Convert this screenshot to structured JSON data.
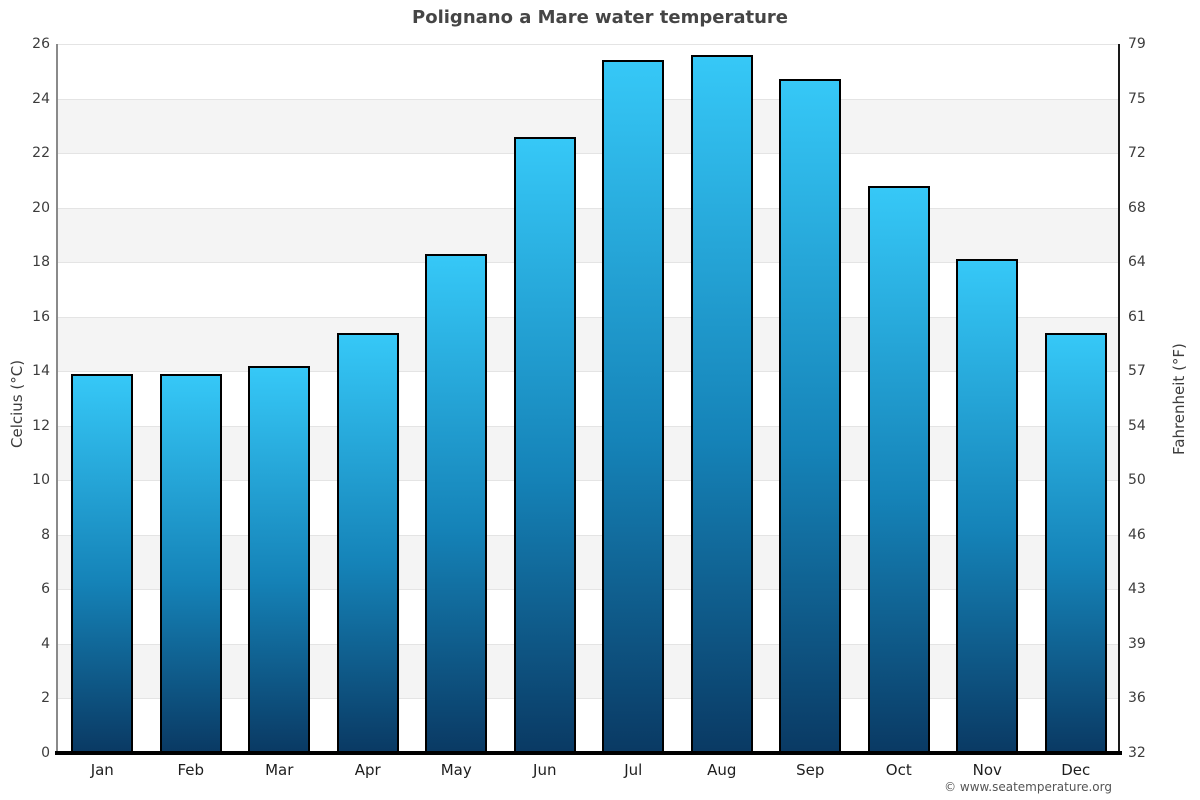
{
  "page": {
    "footer": "© www.seatemperature.org"
  },
  "chart_data": {
    "type": "bar",
    "title": "Polignano a Mare water temperature",
    "categories": [
      "Jan",
      "Feb",
      "Mar",
      "Apr",
      "May",
      "Jun",
      "Jul",
      "Aug",
      "Sep",
      "Oct",
      "Nov",
      "Dec"
    ],
    "series": [
      {
        "name": "Water temperature (°C)",
        "values": [
          13.9,
          13.9,
          14.2,
          15.4,
          18.3,
          22.6,
          25.4,
          25.6,
          24.7,
          20.8,
          18.1,
          15.4
        ]
      }
    ],
    "ylabel_left": "Celcius (°C)",
    "ylabel_right": "Fahrenheit (°F)",
    "ylim": [
      0,
      26
    ],
    "ytick_step": 2,
    "yticks_celsius": [
      "0",
      "2",
      "4",
      "6",
      "8",
      "10",
      "12",
      "14",
      "16",
      "18",
      "20",
      "22",
      "24",
      "26"
    ],
    "yticks_fahrenheit": [
      "32",
      "36",
      "39",
      "43",
      "46",
      "50",
      "54",
      "57",
      "61",
      "64",
      "68",
      "72",
      "75",
      "79"
    ],
    "legend": "none",
    "grid": "alternating horizontal bands",
    "colors": {
      "bar_gradient_top": "#36c8f7",
      "bar_gradient_bottom": "#0a3a64",
      "bar_border": "#000000",
      "band_gray": "#f4f4f4",
      "band_white": "#ffffff",
      "gridline": "#e4e4e4",
      "title_text": "#454545",
      "tick_text": "#3c3c3c"
    }
  }
}
